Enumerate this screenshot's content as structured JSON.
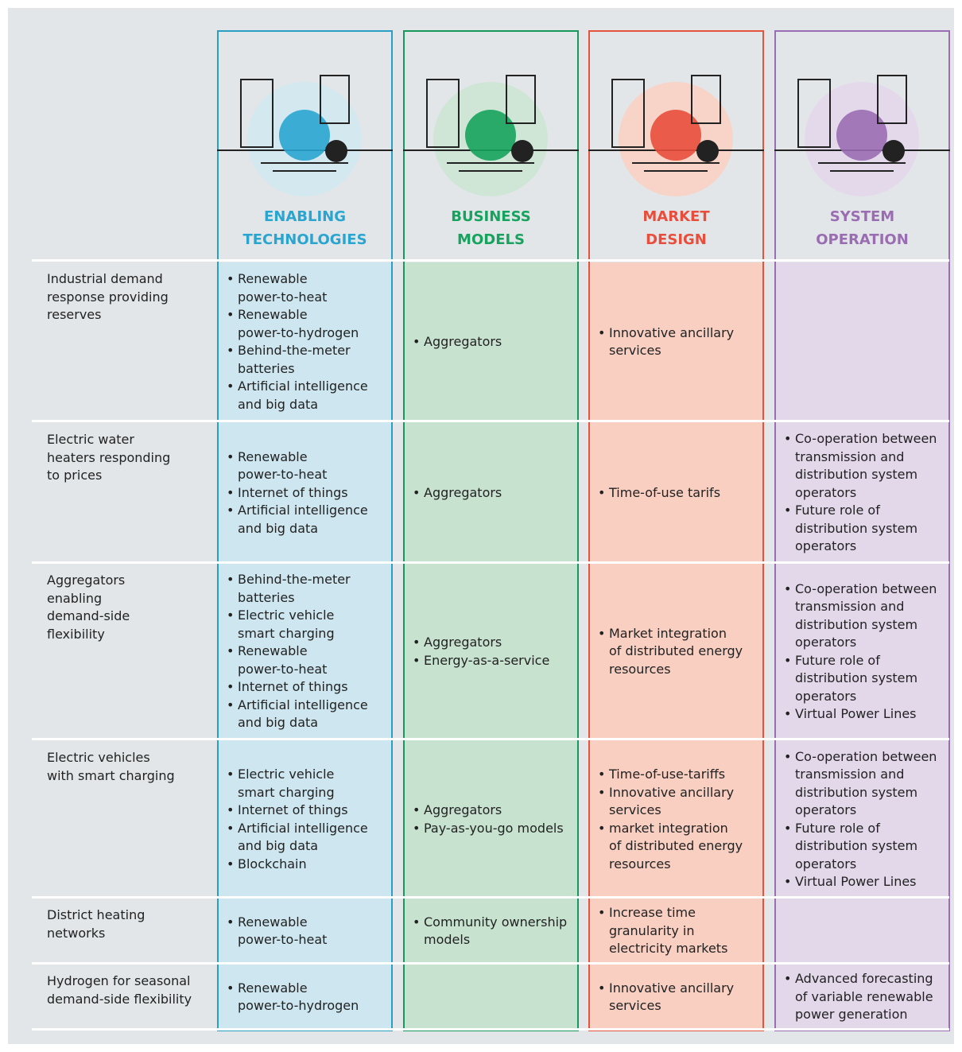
{
  "columns": [
    {
      "title_lines": [
        "ENABLING",
        "TECHNOLOGIES"
      ]
    },
    {
      "title_lines": [
        "BUSINESS",
        "MODELS"
      ]
    },
    {
      "title_lines": [
        "MARKET",
        "DESIGN"
      ]
    },
    {
      "title_lines": [
        "SYSTEM",
        "OPERATION"
      ]
    }
  ],
  "rows": [
    {
      "label": [
        "Industrial demand",
        "response providing",
        "reserves"
      ],
      "cells": [
        [
          [
            "Renewable",
            "power-to-heat"
          ],
          [
            "Renewable",
            "power-to-hydrogen"
          ],
          [
            "Behind-the-meter",
            "batteries"
          ],
          [
            "Artificial intelligence",
            "and big data"
          ]
        ],
        [
          [
            "Aggregators"
          ]
        ],
        [
          [
            "Innovative ancillary",
            "services"
          ]
        ],
        []
      ]
    },
    {
      "label": [
        "Electric water",
        "heaters responding",
        "to prices"
      ],
      "cells": [
        [
          [
            "Renewable",
            "power-to-heat"
          ],
          [
            "Internet of things"
          ],
          [
            "Artificial intelligence",
            "and big data"
          ]
        ],
        [
          [
            "Aggregators"
          ]
        ],
        [
          [
            "Time-of-use tarifs"
          ]
        ],
        [
          [
            "Co-operation between",
            "transmission and",
            "distribution system",
            "operators"
          ],
          [
            "Future role of",
            "distribution system",
            "operators"
          ]
        ]
      ]
    },
    {
      "label": [
        "Aggregators",
        "enabling",
        "demand-side",
        "flexibility"
      ],
      "cells": [
        [
          [
            "Behind-the-meter",
            "batteries"
          ],
          [
            "Electric vehicle",
            "smart charging"
          ],
          [
            "Renewable",
            "power-to-heat"
          ],
          [
            "Internet of things"
          ],
          [
            "Artificial intelligence",
            "and big data"
          ]
        ],
        [
          [
            "Aggregators"
          ],
          [
            "Energy-as-a-service"
          ]
        ],
        [
          [
            "Market integration",
            "of distributed energy",
            "resources"
          ]
        ],
        [
          [
            "Co-operation between",
            "transmission and",
            "distribution system",
            "operators"
          ],
          [
            "Future role of",
            "distribution system",
            "operators"
          ],
          [
            "Virtual Power Lines"
          ]
        ]
      ]
    },
    {
      "label": [
        "Electric vehicles",
        "with smart charging"
      ],
      "cells": [
        [
          [
            "Electric vehicle",
            "smart charging"
          ],
          [
            "Internet of things"
          ],
          [
            "Artificial intelligence",
            "and big data"
          ],
          [
            "Blockchain"
          ]
        ],
        [
          [
            "Aggregators"
          ],
          [
            "Pay-as-you-go models"
          ]
        ],
        [
          [
            "Time-of-use-tariffs"
          ],
          [
            "Innovative ancillary",
            "services"
          ],
          [
            "market integration",
            "of distributed energy",
            "resources"
          ]
        ],
        [
          [
            "Co-operation between",
            "transmission and",
            "distribution system",
            "operators"
          ],
          [
            "Future role of",
            "distribution system",
            "operators"
          ],
          [
            "Virtual Power Lines"
          ]
        ]
      ]
    },
    {
      "label": [
        "District heating",
        "networks"
      ],
      "cells": [
        [
          [
            "Renewable",
            "power-to-heat"
          ]
        ],
        [
          [
            "Community ownership",
            "models"
          ]
        ],
        [
          [
            "Increase time",
            "granularity in",
            "electricity markets"
          ]
        ],
        []
      ]
    },
    {
      "label": [
        "Hydrogen for seasonal",
        "demand-side flexibility"
      ],
      "cells": [
        [
          [
            "Renewable",
            "power-to-hydrogen"
          ]
        ],
        [],
        [
          [
            "Innovative ancillary",
            "services"
          ]
        ],
        [
          [
            "Advanced forecasting",
            "of variable renewable",
            "power generation"
          ]
        ]
      ]
    }
  ]
}
